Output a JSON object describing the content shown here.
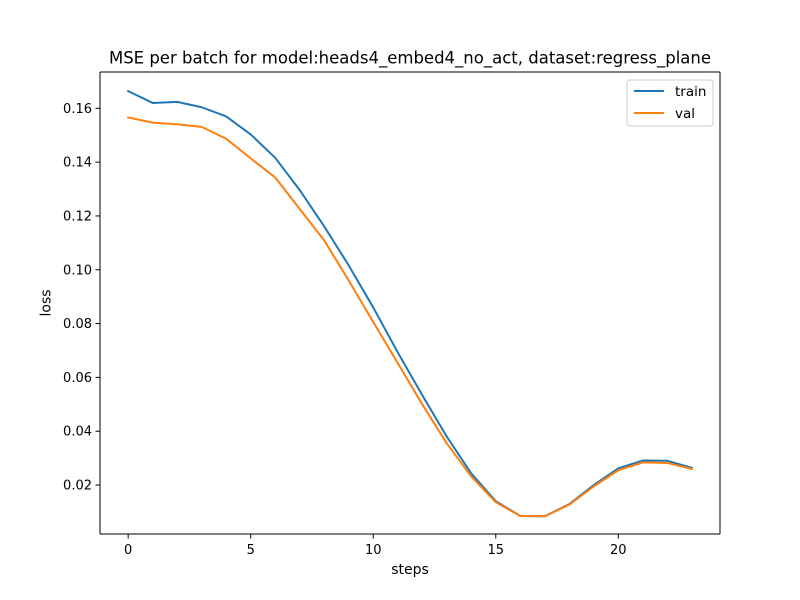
{
  "chart_data": {
    "type": "line",
    "title": "MSE per batch for model:heads4_embed4_no_act, dataset:regress_plane",
    "xlabel": "steps",
    "ylabel": "loss",
    "x": [
      0,
      1,
      2,
      3,
      4,
      5,
      6,
      7,
      8,
      9,
      10,
      11,
      12,
      13,
      14,
      15,
      16,
      17,
      18,
      19,
      20,
      21,
      22,
      23
    ],
    "xlim": [
      -1.15,
      24.15
    ],
    "ylim": [
      0.0018,
      0.1735
    ],
    "xticks": [
      0,
      5,
      10,
      15,
      20
    ],
    "yticks": [
      0.02,
      0.04,
      0.06,
      0.08,
      0.1,
      0.12,
      0.14,
      0.16
    ],
    "ytick_labels": [
      "0.02",
      "0.04",
      "0.06",
      "0.08",
      "0.10",
      "0.12",
      "0.14",
      "0.16"
    ],
    "xtick_labels": [
      "0",
      "5",
      "10",
      "15",
      "20"
    ],
    "grid": false,
    "legend_position": "top-right",
    "series": [
      {
        "name": "train",
        "color": "#1f77b4",
        "values": [
          0.1664,
          0.162,
          0.1624,
          0.1604,
          0.157,
          0.1503,
          0.1416,
          0.1296,
          0.1161,
          0.1016,
          0.086,
          0.0693,
          0.0534,
          0.038,
          0.0243,
          0.014,
          0.0085,
          0.0084,
          0.0129,
          0.02,
          0.0262,
          0.0291,
          0.029,
          0.0264
        ]
      },
      {
        "name": "val",
        "color": "#ff7f0e",
        "values": [
          0.1566,
          0.1547,
          0.1541,
          0.1531,
          0.1487,
          0.1414,
          0.1343,
          0.1226,
          0.1109,
          0.096,
          0.0806,
          0.0653,
          0.05,
          0.0355,
          0.0232,
          0.0136,
          0.0085,
          0.0084,
          0.0127,
          0.0195,
          0.0255,
          0.0284,
          0.0282,
          0.026
        ]
      }
    ]
  }
}
